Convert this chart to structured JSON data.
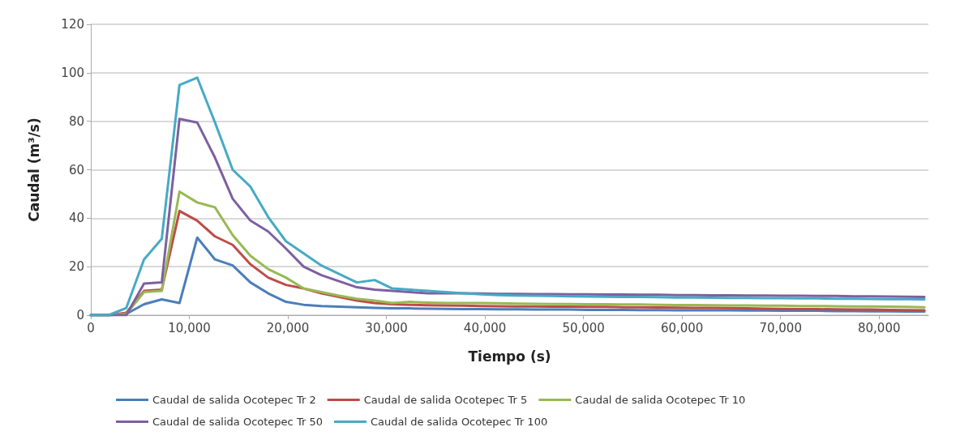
{
  "chart_data": {
    "type": "line",
    "xlabel": "Tiempo (s)",
    "ylabel": "Caudal (m³/s)",
    "x": [
      0,
      1800,
      3600,
      5400,
      7200,
      9000,
      10800,
      12600,
      14400,
      16200,
      18000,
      19800,
      21600,
      23400,
      25200,
      27000,
      28800,
      30600,
      32400,
      34200,
      36000,
      37800,
      39600,
      41400,
      43200,
      45000,
      46800,
      48600,
      50400,
      52200,
      54000,
      55800,
      57600,
      59400,
      61200,
      63000,
      64800,
      66600,
      68400,
      70200,
      72000,
      73800,
      75600,
      77400,
      79200,
      81000,
      82800,
      84600
    ],
    "series": [
      {
        "name": "Caudal de salida Ocotepec Tr 2",
        "color": "#4a7ebb",
        "values": [
          0,
          0,
          0.5,
          4.5,
          6.5,
          5,
          32,
          23,
          20.5,
          13.5,
          9,
          5.5,
          4.3,
          3.8,
          3.5,
          3.3,
          3,
          2.8,
          2.8,
          2.7,
          2.6,
          2.5,
          2.5,
          2.4,
          2.4,
          2.3,
          2.3,
          2.3,
          2.2,
          2.2,
          2.2,
          2.1,
          2.1,
          2,
          2,
          2,
          2,
          1.9,
          1.9,
          1.8,
          1.8,
          1.8,
          1.7,
          1.7,
          1.6,
          1.6,
          1.5,
          1.5
        ]
      },
      {
        "name": "Caudal de salida Ocotepec Tr 5",
        "color": "#be4b48",
        "values": [
          0,
          0,
          1,
          10,
          10.5,
          43,
          39,
          32.5,
          29,
          21,
          15.5,
          12.5,
          11,
          9,
          7.5,
          6,
          5,
          4.5,
          4.3,
          4.1,
          4,
          3.9,
          3.8,
          3.7,
          3.6,
          3.6,
          3.5,
          3.5,
          3.4,
          3.4,
          3.3,
          3.3,
          3.2,
          3.1,
          3,
          3,
          2.9,
          2.8,
          2.7,
          2.6,
          2.5,
          2.5,
          2.4,
          2.3,
          2.3,
          2.2,
          2.1,
          2
        ]
      },
      {
        "name": "Caudal de salida Ocotepec Tr 10",
        "color": "#98b954",
        "values": [
          0,
          0,
          0.5,
          9.5,
          10,
          51,
          46.5,
          44.5,
          33,
          24.5,
          19,
          15.5,
          11,
          9.5,
          8,
          6.8,
          6,
          5,
          5.5,
          5.2,
          5,
          5,
          5,
          4.9,
          4.8,
          4.7,
          4.6,
          4.6,
          4.5,
          4.5,
          4.4,
          4.4,
          4.3,
          4.2,
          4.2,
          4.1,
          4,
          4,
          3.9,
          3.9,
          3.8,
          3.8,
          3.7,
          3.6,
          3.6,
          3.5,
          3.4,
          3.3
        ]
      },
      {
        "name": "Caudal de salida Ocotepec Tr 50",
        "color": "#7d60a0",
        "values": [
          0,
          0,
          0,
          13,
          13.5,
          81,
          79.5,
          65,
          48,
          39,
          34.5,
          27.5,
          20,
          16.5,
          14,
          11.5,
          10.5,
          10,
          9.5,
          9,
          9,
          9,
          8.9,
          8.8,
          8.8,
          8.7,
          8.7,
          8.6,
          8.6,
          8.5,
          8.5,
          8.4,
          8.4,
          8.3,
          8.3,
          8.2,
          8.2,
          8.1,
          8.1,
          8,
          8,
          7.9,
          7.9,
          7.8,
          7.8,
          7.7,
          7.6,
          7.5
        ]
      },
      {
        "name": "Caudal de salida Ocotepec Tr 100",
        "color": "#46aac5",
        "values": [
          0,
          0,
          3,
          23,
          31.5,
          95,
          98,
          79.5,
          60,
          53,
          40.5,
          30.5,
          25.5,
          20.5,
          17,
          13.5,
          14.5,
          11,
          10.5,
          10,
          9.5,
          9,
          8.6,
          8.3,
          8.1,
          8,
          7.9,
          7.8,
          7.7,
          7.6,
          7.5,
          7.5,
          7.4,
          7.3,
          7.3,
          7.2,
          7.1,
          7.1,
          7,
          7,
          6.9,
          6.9,
          6.8,
          6.8,
          6.7,
          6.6,
          6.6,
          6.5
        ]
      }
    ],
    "xlim": [
      0,
      85000
    ],
    "xticks": [
      0,
      {
        "value": 10000,
        "label": "10,000"
      },
      {
        "value": 20000,
        "label": "20,000"
      },
      {
        "value": 30000,
        "label": "30,000"
      },
      {
        "value": 40000,
        "label": "40,000"
      },
      {
        "value": 50000,
        "label": "50,000"
      },
      {
        "value": 60000,
        "label": "60,000"
      },
      {
        "value": 70000,
        "label": "70,000"
      },
      {
        "value": 80000,
        "label": "80,000"
      }
    ],
    "ylim": [
      0,
      120
    ],
    "yticks": [
      0,
      20,
      40,
      60,
      80,
      100,
      120
    ],
    "grid": "y",
    "legend": "bottom",
    "marker": "none",
    "line_style": "solid"
  }
}
